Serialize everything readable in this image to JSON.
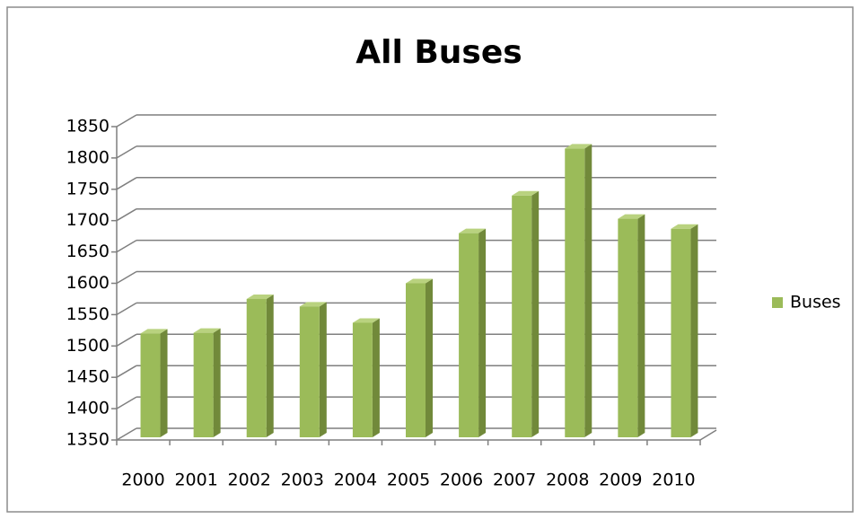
{
  "chart_data": {
    "type": "bar",
    "title": "All Buses",
    "categories": [
      "2000",
      "2001",
      "2002",
      "2003",
      "2004",
      "2005",
      "2006",
      "2007",
      "2008",
      "2009",
      "2010"
    ],
    "series": [
      {
        "name": "Buses",
        "color": "#9bbb59",
        "values": [
          1520,
          1521,
          1575,
          1563,
          1537,
          1600,
          1680,
          1740,
          1815,
          1703,
          1687
        ]
      }
    ],
    "ylim": [
      1350,
      1850
    ],
    "yticks": [
      1350,
      1400,
      1450,
      1500,
      1550,
      1600,
      1650,
      1700,
      1750,
      1800,
      1850
    ],
    "grid": true,
    "legend": "right"
  }
}
